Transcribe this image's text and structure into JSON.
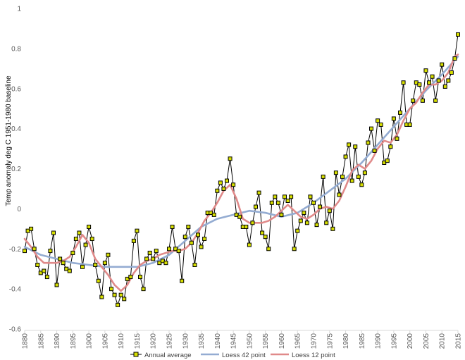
{
  "chart_data": {
    "type": "line",
    "title": "",
    "xlabel": "",
    "ylabel": "Temp anomaly deg C 1951-1980 baseline",
    "xlim": [
      1880,
      2015
    ],
    "ylim": [
      -0.6,
      1.0
    ],
    "xticks": [
      "1880",
      "1885",
      "1890",
      "1895",
      "1900",
      "1905",
      "1910",
      "1915",
      "1920",
      "1925",
      "1930",
      "1935",
      "1940",
      "1945",
      "1950",
      "1955",
      "1960",
      "1965",
      "1970",
      "1975",
      "1980",
      "1985",
      "1990",
      "1995",
      "2000",
      "2005",
      "2010",
      "2015"
    ],
    "yticks": [
      "-0.6",
      "-0.4",
      "-0.2",
      "0",
      "0.2",
      "0.4",
      "0.6",
      "0.8",
      "1"
    ],
    "grid": false,
    "legend": "bottom",
    "colors": {
      "annual": "#000000",
      "annual_marker": "#d6de00",
      "loess42": "#94acd2",
      "loess12": "#e08a8a",
      "axis": "#d9d9d9"
    },
    "series": [
      {
        "name": "Annual average",
        "x": [
          1880,
          1881,
          1882,
          1883,
          1884,
          1885,
          1886,
          1887,
          1888,
          1889,
          1890,
          1891,
          1892,
          1893,
          1894,
          1895,
          1896,
          1897,
          1898,
          1899,
          1900,
          1901,
          1902,
          1903,
          1904,
          1905,
          1906,
          1907,
          1908,
          1909,
          1910,
          1911,
          1912,
          1913,
          1914,
          1915,
          1916,
          1917,
          1918,
          1919,
          1920,
          1921,
          1922,
          1923,
          1924,
          1925,
          1926,
          1927,
          1928,
          1929,
          1930,
          1931,
          1932,
          1933,
          1934,
          1935,
          1936,
          1937,
          1938,
          1939,
          1940,
          1941,
          1942,
          1943,
          1944,
          1945,
          1946,
          1947,
          1948,
          1949,
          1950,
          1951,
          1952,
          1953,
          1954,
          1955,
          1956,
          1957,
          1958,
          1959,
          1960,
          1961,
          1962,
          1963,
          1964,
          1965,
          1966,
          1967,
          1968,
          1969,
          1970,
          1971,
          1972,
          1973,
          1974,
          1975,
          1976,
          1977,
          1978,
          1979,
          1980,
          1981,
          1982,
          1983,
          1984,
          1985,
          1986,
          1987,
          1988,
          1989,
          1990,
          1991,
          1992,
          1993,
          1994,
          1995,
          1996,
          1997,
          1998,
          1999,
          2000,
          2001,
          2002,
          2003,
          2004,
          2005,
          2006,
          2007,
          2008,
          2009,
          2010,
          2011,
          2012,
          2013,
          2014,
          2015
        ],
        "values": [
          -0.21,
          -0.11,
          -0.1,
          -0.2,
          -0.28,
          -0.32,
          -0.31,
          -0.34,
          -0.21,
          -0.12,
          -0.38,
          -0.25,
          -0.27,
          -0.3,
          -0.31,
          -0.22,
          -0.15,
          -0.12,
          -0.29,
          -0.18,
          -0.09,
          -0.15,
          -0.28,
          -0.36,
          -0.44,
          -0.27,
          -0.23,
          -0.4,
          -0.43,
          -0.48,
          -0.43,
          -0.45,
          -0.35,
          -0.34,
          -0.16,
          -0.11,
          -0.34,
          -0.4,
          -0.25,
          -0.22,
          -0.25,
          -0.21,
          -0.27,
          -0.26,
          -0.27,
          -0.2,
          -0.09,
          -0.2,
          -0.21,
          -0.36,
          -0.14,
          -0.09,
          -0.17,
          -0.28,
          -0.13,
          -0.19,
          -0.15,
          -0.02,
          -0.02,
          -0.03,
          0.09,
          0.13,
          0.1,
          0.14,
          0.25,
          0.12,
          -0.03,
          -0.04,
          -0.09,
          -0.09,
          -0.18,
          -0.07,
          0.01,
          0.08,
          -0.12,
          -0.14,
          -0.2,
          0.03,
          0.06,
          0.03,
          -0.03,
          0.06,
          0.04,
          0.06,
          -0.2,
          -0.11,
          -0.06,
          -0.02,
          -0.07,
          0.06,
          0.03,
          -0.08,
          0.01,
          0.16,
          -0.07,
          -0.01,
          -0.1,
          0.18,
          0.07,
          0.16,
          0.26,
          0.32,
          0.14,
          0.31,
          0.16,
          0.12,
          0.18,
          0.33,
          0.4,
          0.29,
          0.44,
          0.42,
          0.23,
          0.24,
          0.31,
          0.45,
          0.35,
          0.48,
          0.63,
          0.42,
          0.42,
          0.54,
          0.63,
          0.62,
          0.54,
          0.69,
          0.63,
          0.66,
          0.54,
          0.64,
          0.72,
          0.61,
          0.64,
          0.68,
          0.75,
          0.87
        ]
      },
      {
        "name": "Loess 42 point",
        "x": [
          1880,
          1885,
          1890,
          1895,
          1900,
          1905,
          1910,
          1915,
          1920,
          1925,
          1930,
          1935,
          1940,
          1945,
          1950,
          1955,
          1960,
          1965,
          1970,
          1975,
          1980,
          1985,
          1990,
          1995,
          2000,
          2005,
          2010,
          2015
        ],
        "values": [
          -0.19,
          -0.23,
          -0.25,
          -0.27,
          -0.28,
          -0.29,
          -0.29,
          -0.29,
          -0.27,
          -0.23,
          -0.16,
          -0.09,
          -0.05,
          -0.03,
          -0.01,
          -0.02,
          -0.04,
          -0.02,
          0.03,
          0.09,
          0.15,
          0.23,
          0.32,
          0.41,
          0.5,
          0.59,
          0.67,
          0.76
        ]
      },
      {
        "name": "Loess 12 point",
        "x": [
          1880,
          1882,
          1884,
          1886,
          1888,
          1890,
          1892,
          1894,
          1896,
          1898,
          1900,
          1902,
          1904,
          1906,
          1908,
          1910,
          1912,
          1914,
          1916,
          1918,
          1920,
          1922,
          1924,
          1926,
          1928,
          1930,
          1932,
          1934,
          1936,
          1938,
          1940,
          1942,
          1944,
          1946,
          1948,
          1950,
          1952,
          1954,
          1956,
          1958,
          1960,
          1962,
          1964,
          1966,
          1968,
          1970,
          1972,
          1974,
          1976,
          1978,
          1980,
          1982,
          1984,
          1986,
          1988,
          1990,
          1992,
          1994,
          1996,
          1998,
          2000,
          2002,
          2004,
          2006,
          2008,
          2010,
          2012,
          2014,
          2015
        ],
        "values": [
          -0.15,
          -0.19,
          -0.24,
          -0.27,
          -0.27,
          -0.27,
          -0.26,
          -0.24,
          -0.19,
          -0.13,
          -0.17,
          -0.25,
          -0.29,
          -0.33,
          -0.38,
          -0.41,
          -0.38,
          -0.32,
          -0.28,
          -0.26,
          -0.25,
          -0.23,
          -0.22,
          -0.21,
          -0.21,
          -0.2,
          -0.17,
          -0.12,
          -0.06,
          -0.02,
          0.03,
          0.09,
          0.12,
          0.05,
          -0.05,
          -0.07,
          -0.07,
          -0.07,
          -0.06,
          -0.04,
          -0.01,
          0.02,
          -0.01,
          -0.04,
          -0.05,
          -0.03,
          0.0,
          0.01,
          0.0,
          0.04,
          0.11,
          0.19,
          0.22,
          0.2,
          0.24,
          0.3,
          0.34,
          0.33,
          0.37,
          0.44,
          0.5,
          0.53,
          0.58,
          0.62,
          0.62,
          0.64,
          0.68,
          0.76,
          0.77
        ]
      }
    ]
  }
}
